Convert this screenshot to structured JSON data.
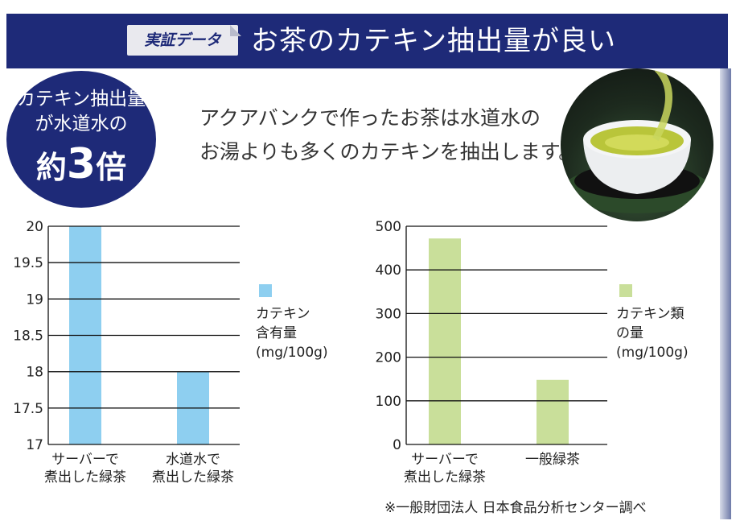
{
  "header": {
    "tag_label": "実証データ",
    "title": "お茶のカテキン抽出量が良い"
  },
  "badge": {
    "line1": "カテキン抽出量",
    "line2": "が水道水の",
    "line3_prefix": "約",
    "line3_number": "3",
    "line3_suffix": "倍"
  },
  "intro": {
    "line1": "アクアバンクで作ったお茶は水道水の",
    "line2": "お湯よりも多くのカテキンを抽出します。"
  },
  "image": {
    "icon": "green-tea-cup-photo"
  },
  "colors": {
    "header": "#1e2a78",
    "bar_left": "#8ecff0",
    "bar_right": "#c9df9a",
    "grid": "#111111"
  },
  "chart_data": [
    {
      "type": "bar",
      "categories": [
        "サーバーで 煮出した緑茶",
        "水道水で 煮出した緑茶"
      ],
      "category_lines": [
        [
          "サーバーで",
          "煮出した緑茶"
        ],
        [
          "水道水で",
          "煮出した緑茶"
        ]
      ],
      "values": [
        20,
        18
      ],
      "ylim": [
        17,
        20
      ],
      "yticks": [
        20,
        19.5,
        19,
        18.5,
        18,
        17.5,
        17
      ],
      "ytick_labels": [
        "20",
        "19.5",
        "19",
        "18.5",
        "18",
        "17.5",
        "17"
      ],
      "grid": true,
      "legend": {
        "position": "right",
        "lines": [
          "カテキン",
          "含有量",
          "(mg/100g)"
        ]
      }
    },
    {
      "type": "bar",
      "categories": [
        "サーバーで 煮出した緑茶",
        "一般緑茶"
      ],
      "category_lines": [
        [
          "サーバーで",
          "煮出した緑茶"
        ],
        [
          "一般緑茶"
        ]
      ],
      "values": [
        472,
        148
      ],
      "ylim": [
        0,
        500
      ],
      "yticks": [
        500,
        400,
        300,
        200,
        100,
        0
      ],
      "ytick_labels": [
        "500",
        "400",
        "300",
        "200",
        "100",
        "0"
      ],
      "grid": true,
      "legend": {
        "position": "right",
        "lines": [
          "カテキン類",
          "の量",
          "(mg/100g)"
        ]
      }
    }
  ],
  "footnote": "※一般財団法人 日本食品分析センター調べ"
}
